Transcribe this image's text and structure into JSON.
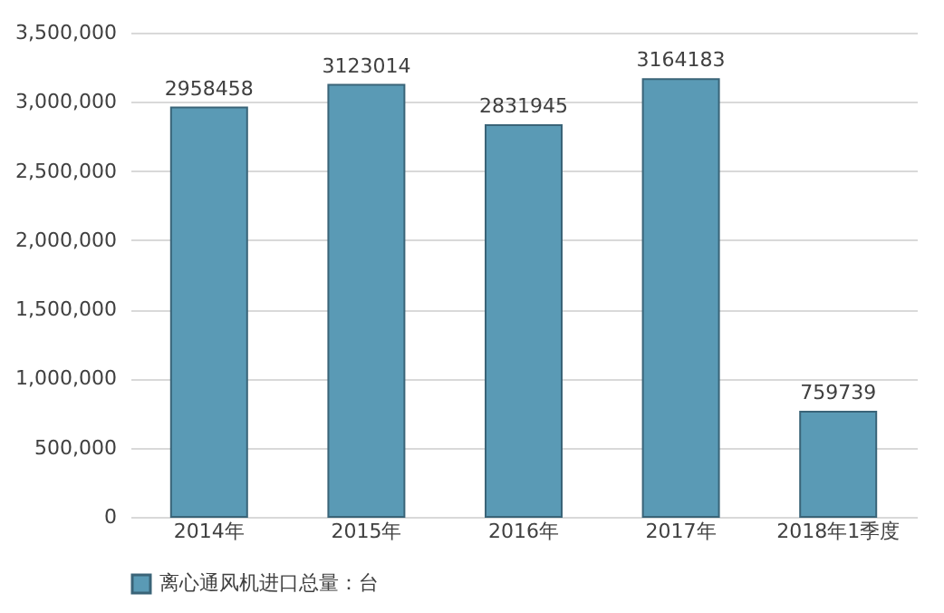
{
  "chart_data": {
    "type": "bar",
    "categories": [
      "2014年",
      "2015年",
      "2016年",
      "2017年",
      "2018年1季度"
    ],
    "series": [
      {
        "name": "离心通风机进口总量：台",
        "color": "#5a9ab5",
        "values": [
          2958458,
          3123014,
          2831945,
          3164183,
          759739
        ]
      }
    ],
    "ylim": [
      0,
      3500000
    ],
    "yticks": [
      0,
      {
        "value": 500000,
        "label": "500,000"
      },
      {
        "value": 1000000,
        "label": "1,000,000"
      },
      {
        "value": 1500000,
        "label": "1,500,000"
      },
      {
        "value": 2000000,
        "label": "2,000,000"
      },
      {
        "value": 2500000,
        "label": "2,500,000"
      },
      {
        "value": 3000000,
        "label": "3,000,000"
      },
      {
        "value": 3500000,
        "label": "3,500,000"
      }
    ],
    "grid": "y",
    "legend": "bottom",
    "data_labels": true
  }
}
